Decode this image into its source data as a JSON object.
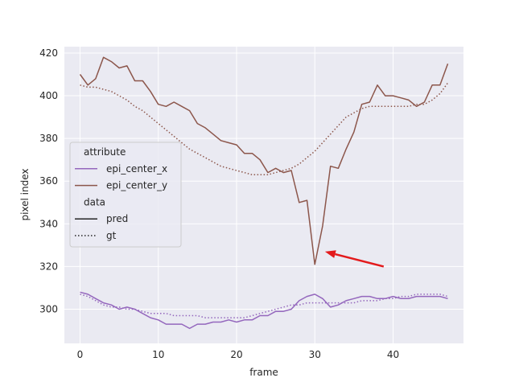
{
  "chart_data": {
    "type": "line",
    "xlabel": "frame",
    "ylabel": "pixel index",
    "xlim": [
      -2,
      49
    ],
    "ylim": [
      284,
      423
    ],
    "xticks": [
      0,
      10,
      20,
      30,
      40
    ],
    "yticks": [
      300,
      320,
      340,
      360,
      380,
      400,
      420
    ],
    "grid": true,
    "legend": {
      "placement": "center-left",
      "title_attribute": "attribute",
      "title_data": "data",
      "style_entries": [
        {
          "label": "pred",
          "style": "solid"
        },
        {
          "label": "gt",
          "style": "dotted"
        }
      ]
    },
    "annotation": {
      "type": "arrow",
      "color": "#e31a1c",
      "from": [
        38.8,
        320
      ],
      "to": [
        31.3,
        327
      ]
    },
    "series": [
      {
        "name": "epi_center_x",
        "kind": "pred",
        "color": "#9467bd",
        "style": "solid",
        "x": [
          0,
          1,
          2,
          3,
          4,
          5,
          6,
          7,
          8,
          9,
          10,
          11,
          12,
          13,
          14,
          15,
          16,
          17,
          18,
          19,
          20,
          21,
          22,
          23,
          24,
          25,
          26,
          27,
          28,
          29,
          30,
          31,
          32,
          33,
          34,
          35,
          36,
          37,
          38,
          39,
          40,
          41,
          42,
          43,
          44,
          45,
          46,
          47
        ],
        "y": [
          308,
          307,
          305,
          303,
          302,
          300,
          301,
          300,
          298,
          296,
          295,
          293,
          293,
          293,
          291,
          293,
          293,
          294,
          294,
          295,
          294,
          295,
          295,
          297,
          297,
          299,
          299,
          300,
          304,
          306,
          307,
          305,
          301,
          302,
          304,
          305,
          306,
          306,
          305,
          305,
          306,
          305,
          305,
          306,
          306,
          306,
          306,
          305
        ]
      },
      {
        "name": "epi_center_y",
        "kind": "pred",
        "color": "#8c564b",
        "style": "solid",
        "x": [
          0,
          1,
          2,
          3,
          4,
          5,
          6,
          7,
          8,
          9,
          10,
          11,
          12,
          13,
          14,
          15,
          16,
          17,
          18,
          19,
          20,
          21,
          22,
          23,
          24,
          25,
          26,
          27,
          28,
          29,
          30,
          31,
          32,
          33,
          34,
          35,
          36,
          37,
          38,
          39,
          40,
          41,
          42,
          43,
          44,
          45,
          46,
          47
        ],
        "y": [
          410,
          405,
          408,
          418,
          416,
          413,
          414,
          407,
          407,
          402,
          396,
          395,
          397,
          395,
          393,
          387,
          385,
          382,
          379,
          378,
          377,
          373,
          373,
          370,
          364,
          366,
          364,
          365,
          350,
          351,
          321,
          339,
          367,
          366,
          375,
          383,
          396,
          397,
          405,
          400,
          400,
          399,
          398,
          395,
          397,
          405,
          405,
          415
        ]
      },
      {
        "name": "epi_center_x",
        "kind": "gt",
        "color": "#9467bd",
        "style": "dotted",
        "x": [
          0,
          1,
          2,
          3,
          4,
          5,
          6,
          7,
          8,
          9,
          10,
          11,
          12,
          13,
          14,
          15,
          16,
          17,
          18,
          19,
          20,
          21,
          22,
          23,
          24,
          25,
          26,
          27,
          28,
          29,
          30,
          31,
          32,
          33,
          34,
          35,
          36,
          37,
          38,
          39,
          40,
          41,
          42,
          43,
          44,
          45,
          46,
          47
        ],
        "y": [
          307,
          306,
          304,
          302,
          301,
          301,
          300,
          300,
          299,
          298,
          298,
          298,
          297,
          297,
          297,
          297,
          296,
          296,
          296,
          296,
          296,
          296,
          297,
          298,
          299,
          300,
          301,
          302,
          302,
          303,
          303,
          303,
          303,
          303,
          303,
          303,
          304,
          304,
          304,
          305,
          305,
          306,
          306,
          307,
          307,
          307,
          307,
          306
        ]
      },
      {
        "name": "epi_center_y",
        "kind": "gt",
        "color": "#8c564b",
        "style": "dotted",
        "x": [
          0,
          1,
          2,
          3,
          4,
          5,
          6,
          7,
          8,
          9,
          10,
          11,
          12,
          13,
          14,
          15,
          16,
          17,
          18,
          19,
          20,
          21,
          22,
          23,
          24,
          25,
          26,
          27,
          28,
          29,
          30,
          31,
          32,
          33,
          34,
          35,
          36,
          37,
          38,
          39,
          40,
          41,
          42,
          43,
          44,
          45,
          46,
          47
        ],
        "y": [
          405,
          404,
          404,
          403,
          402,
          400,
          398,
          395,
          393,
          390,
          387,
          384,
          381,
          378,
          375,
          373,
          371,
          369,
          367,
          366,
          365,
          364,
          363,
          363,
          363,
          364,
          365,
          366,
          368,
          371,
          374,
          378,
          382,
          386,
          390,
          392,
          394,
          395,
          395,
          395,
          395,
          395,
          395,
          396,
          396,
          398,
          401,
          406
        ]
      }
    ]
  }
}
